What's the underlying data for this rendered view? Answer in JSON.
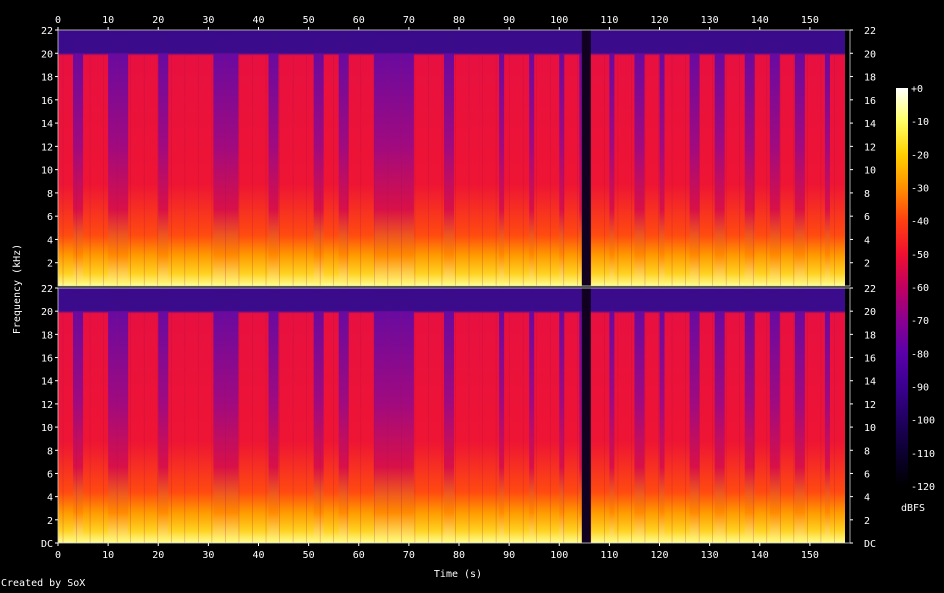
{
  "chart_data": {
    "type": "heatmap",
    "title": "",
    "xlabel": "Time (s)",
    "ylabel": "Frequency (kHz)",
    "xlim": [
      0,
      158
    ],
    "x_ticks": [
      "0",
      "10",
      "20",
      "30",
      "40",
      "50",
      "60",
      "70",
      "80",
      "90",
      "100",
      "110",
      "120",
      "130",
      "140",
      "150"
    ],
    "x_tick_values": [
      0,
      10,
      20,
      30,
      40,
      50,
      60,
      70,
      80,
      90,
      100,
      110,
      120,
      130,
      140,
      150
    ],
    "channels": [
      {
        "ylim": [
          0,
          22
        ],
        "y_ticks": [
          "2",
          "4",
          "6",
          "8",
          "10",
          "12",
          "14",
          "16",
          "18",
          "20",
          "22"
        ],
        "y_tick_values": [
          2,
          4,
          6,
          8,
          10,
          12,
          14,
          16,
          18,
          20,
          22
        ]
      },
      {
        "ylim": [
          0,
          22
        ],
        "y_ticks": [
          "DC",
          "2",
          "4",
          "6",
          "8",
          "10",
          "12",
          "14",
          "16",
          "18",
          "20",
          "22"
        ],
        "y_tick_values": [
          0,
          2,
          4,
          6,
          8,
          10,
          12,
          14,
          16,
          18,
          20,
          22
        ]
      }
    ],
    "colorbar": {
      "label": "dBFS",
      "range": [
        -120,
        0
      ],
      "ticks": [
        "+0",
        "-10",
        "-20",
        "-30",
        "-40",
        "-50",
        "-60",
        "-70",
        "-80",
        "-90",
        "-100",
        "-110",
        "-120"
      ],
      "tick_values": [
        0,
        -10,
        -20,
        -30,
        -40,
        -50,
        -60,
        -70,
        -80,
        -90,
        -100,
        -110,
        -120
      ],
      "colors": [
        "#ffffff",
        "#ffff66",
        "#ffd000",
        "#ff9000",
        "#ff4010",
        "#f01030",
        "#c00060",
        "#8a0090",
        "#5a00a8",
        "#3a0090",
        "#200060",
        "#0c0030",
        "#000000"
      ]
    },
    "signal_end_s": 157,
    "lowpass_khz": 20,
    "dropout_s": [
      104.5,
      106.3
    ],
    "bright_segments_s": [
      [
        0,
        3
      ],
      [
        5,
        10
      ],
      [
        14,
        20
      ],
      [
        22,
        31
      ],
      [
        36,
        42
      ],
      [
        44,
        51
      ],
      [
        53,
        56
      ],
      [
        58,
        63
      ],
      [
        71,
        77
      ],
      [
        79,
        84
      ],
      [
        84,
        88
      ],
      [
        89,
        94
      ],
      [
        95,
        100
      ],
      [
        101,
        104
      ],
      [
        106,
        110
      ],
      [
        111,
        115
      ],
      [
        117,
        120
      ],
      [
        121,
        126
      ],
      [
        128,
        131
      ],
      [
        133,
        137
      ],
      [
        139,
        142
      ],
      [
        144,
        147
      ],
      [
        149,
        153
      ],
      [
        154,
        157
      ]
    ]
  },
  "credit": "Created by SoX"
}
